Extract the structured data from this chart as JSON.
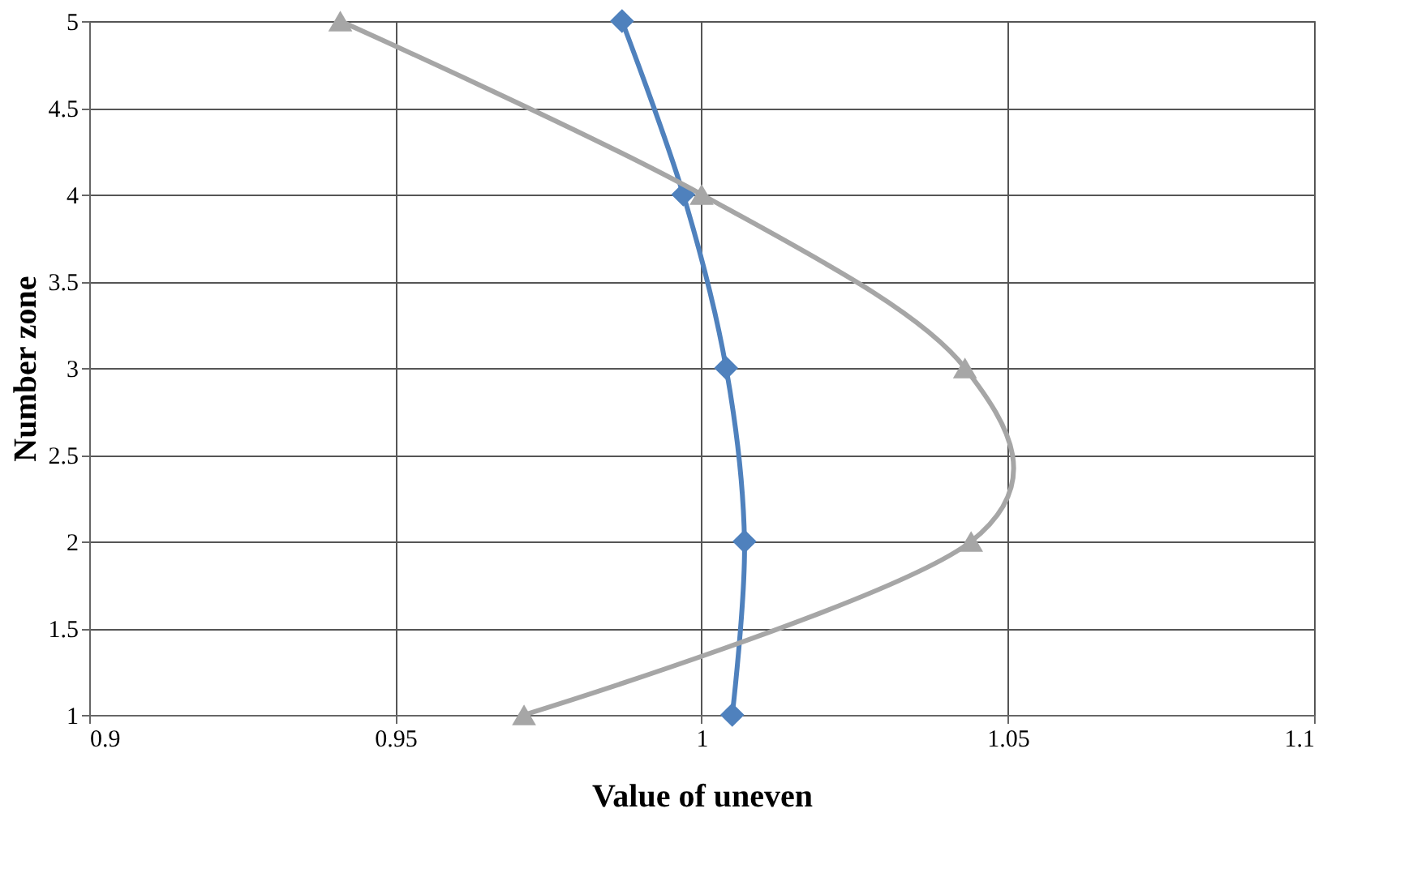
{
  "chart_data": {
    "type": "line",
    "orientation": "horizontal",
    "xlabel": "Value of uneven",
    "ylabel": "Number zone",
    "x": [
      1,
      2,
      3,
      4,
      5
    ],
    "series": [
      {
        "color": "#4f81bd",
        "marker": "diamond",
        "values": [
          1.005,
          1.007,
          1.004,
          0.997,
          0.987
        ]
      },
      {
        "color": "#a6a6a6",
        "marker": "triangle",
        "values": [
          0.971,
          1.044,
          1.043,
          1.0,
          0.941
        ]
      }
    ],
    "xlim": [
      0.9,
      1.1
    ],
    "xticks": [
      0.9,
      0.95,
      1,
      1.05,
      1.1
    ],
    "ylim": [
      1,
      5
    ],
    "yticks": [
      1,
      1.5,
      2,
      2.5,
      3,
      3.5,
      4,
      4.5,
      5
    ],
    "grid": true,
    "line_style": "solid"
  }
}
